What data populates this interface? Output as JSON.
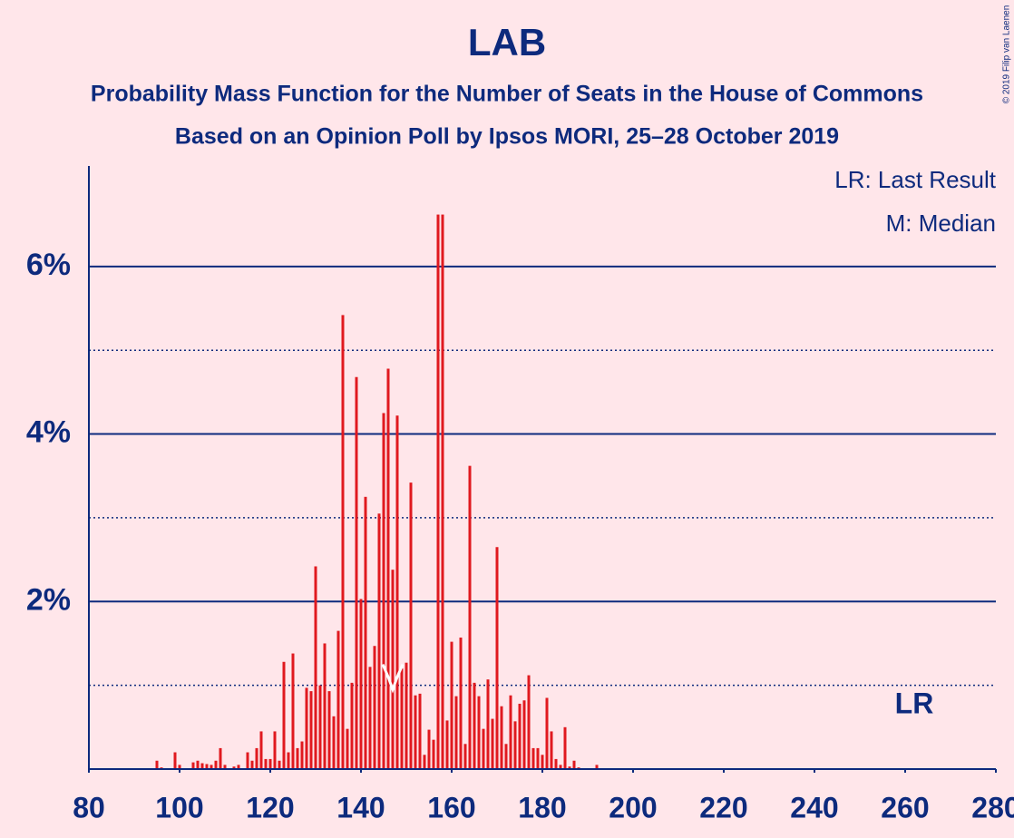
{
  "chart_data": {
    "type": "bar",
    "title": "LAB",
    "subtitle": [
      "Probability Mass Function for the Number of Seats in the House of Commons",
      "Based on an Opinion Poll by Ipsos MORI, 25–28 October 2019"
    ],
    "legend_texts": [
      "LR: Last Result",
      "M: Median"
    ],
    "copyright": "© 2019 Filip van Laenen",
    "x": [
      95,
      96,
      97,
      98,
      99,
      100,
      101,
      102,
      103,
      104,
      105,
      106,
      107,
      108,
      109,
      110,
      111,
      112,
      113,
      114,
      115,
      116,
      117,
      118,
      119,
      120,
      121,
      122,
      123,
      124,
      125,
      126,
      127,
      128,
      129,
      130,
      131,
      132,
      133,
      134,
      135,
      136,
      137,
      138,
      139,
      140,
      141,
      142,
      143,
      144,
      145,
      146,
      147,
      148,
      149,
      150,
      151,
      152,
      153,
      154,
      155,
      156,
      157,
      158,
      159,
      160,
      161,
      162,
      163,
      164,
      165,
      166,
      167,
      168,
      169,
      170,
      171,
      172,
      173,
      174,
      175,
      176,
      177,
      178,
      179,
      180,
      181,
      182,
      183,
      184,
      185,
      186,
      187,
      188,
      189,
      190,
      191,
      192
    ],
    "values": [
      0.1,
      0.02,
      0,
      0,
      0.2,
      0.05,
      0,
      0,
      0.08,
      0.1,
      0.07,
      0.06,
      0.05,
      0.1,
      0.25,
      0.05,
      0,
      0.03,
      0.05,
      0,
      0.2,
      0.1,
      0.25,
      0.45,
      0.12,
      0.12,
      0.45,
      0.1,
      1.28,
      0.2,
      1.38,
      0.25,
      0.33,
      0.97,
      0.93,
      2.42,
      1.0,
      1.5,
      0.93,
      0.63,
      1.65,
      5.42,
      0.48,
      1.03,
      4.68,
      2.03,
      3.25,
      1.22,
      1.47,
      3.05,
      4.25,
      4.78,
      2.38,
      4.22,
      1.2,
      1.27,
      3.42,
      0.88,
      0.9,
      0.17,
      0.47,
      0.35,
      6.62,
      6.62,
      0.58,
      1.52,
      0.87,
      1.57,
      0.3,
      3.62,
      1.03,
      0.87,
      0.48,
      1.07,
      0.6,
      2.65,
      0.75,
      0.3,
      0.88,
      0.57,
      0.78,
      0.82,
      1.12,
      0.25,
      0.25,
      0.17,
      0.85,
      0.45,
      0.12,
      0.05,
      0.5,
      0.03,
      0.1,
      0.02,
      0.01,
      0.01,
      0.01,
      0.05
    ],
    "color": "#e0191f",
    "median": 147,
    "last_result": 262,
    "last_result_label": "LR",
    "xlim": [
      80,
      280
    ],
    "xticks": [
      80,
      100,
      120,
      140,
      160,
      180,
      200,
      220,
      240,
      260,
      280
    ],
    "ylim": [
      0,
      7.2
    ],
    "yticks": [
      {
        "value": 2,
        "label": "2%"
      },
      {
        "value": 4,
        "label": "4%"
      },
      {
        "value": 6,
        "label": "6%"
      }
    ],
    "minor_yticks": [
      1,
      3,
      5
    ],
    "grid": true
  }
}
